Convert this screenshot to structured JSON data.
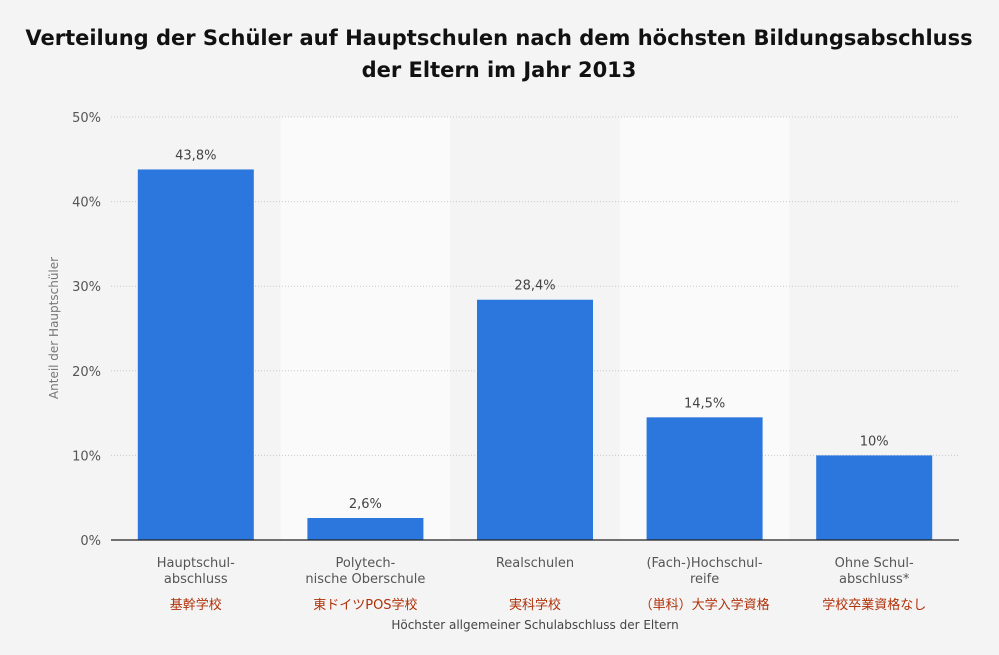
{
  "chart_data": {
    "type": "bar",
    "title": [
      "Verteilung der Schüler auf Hauptschulen nach dem höchsten Bildungsabschluss",
      "der Eltern im Jahr 2013"
    ],
    "xlabel": "Höchster allgemeiner Schulabschluss der Eltern",
    "ylabel": "Anteil der Hauptschüler",
    "ylim": [
      0,
      50
    ],
    "yticks": [
      0,
      10,
      20,
      30,
      40,
      50
    ],
    "ytick_labels": [
      "0%",
      "10%",
      "20%",
      "30%",
      "40%",
      "50%"
    ],
    "grid": true,
    "categories": [
      [
        "Hauptschul-",
        "abschluss"
      ],
      [
        "Polytech-",
        "nische Oberschule"
      ],
      [
        "Realschulen"
      ],
      [
        "(Fach-)Hochschul-",
        "reife"
      ],
      [
        "Ohne Schul-",
        "abschluss*"
      ]
    ],
    "category_notes": [
      "基幹学校",
      "東ドイツPOS学校",
      "実科学校",
      "（単科）大学入学資格",
      "学校卒業資格なし"
    ],
    "values": [
      43.8,
      2.6,
      28.4,
      14.5,
      10
    ],
    "data_labels": [
      "43,8%",
      "2,6%",
      "28,4%",
      "14,5%",
      "10%"
    ]
  },
  "colors": {
    "bar": "#2b77dd",
    "background": "#f4f4f4",
    "plot_band": "#fafafa",
    "grid": "#c8c8c8",
    "axis": "#222222",
    "annotation": "#b03008"
  }
}
